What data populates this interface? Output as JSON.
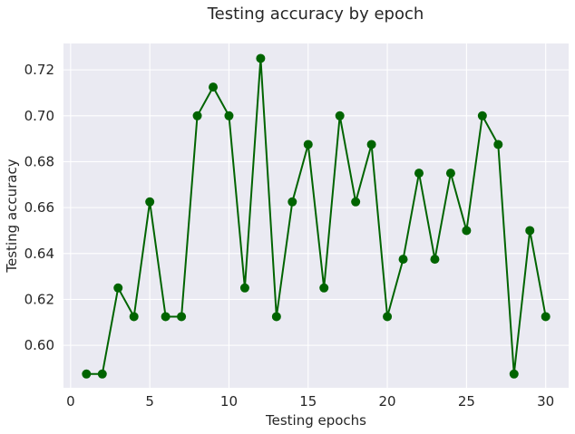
{
  "chart_data": {
    "type": "line",
    "title": "Testing accuracy by epoch",
    "xlabel": "Testing epochs",
    "ylabel": "Testing accuracy",
    "xlim": [
      -0.45,
      31.45
    ],
    "ylim": [
      0.5815,
      0.7315
    ],
    "xticks": [
      0,
      5,
      10,
      15,
      20,
      25,
      30
    ],
    "xtick_labels": [
      "0",
      "5",
      "10",
      "15",
      "20",
      "25",
      "30"
    ],
    "yticks": [
      0.6,
      0.62,
      0.64,
      0.66,
      0.68,
      0.7,
      0.72
    ],
    "ytick_labels": [
      "0.60",
      "0.62",
      "0.64",
      "0.66",
      "0.68",
      "0.70",
      "0.72"
    ],
    "grid": true,
    "series": [
      {
        "color": "#006400",
        "marker": "circle",
        "x": [
          1,
          2,
          3,
          4,
          5,
          6,
          7,
          8,
          9,
          10,
          11,
          12,
          13,
          14,
          15,
          16,
          17,
          18,
          19,
          20,
          21,
          22,
          23,
          24,
          25,
          26,
          27,
          28,
          29,
          30
        ],
        "y": [
          0.5875,
          0.5875,
          0.625,
          0.6125,
          0.6625,
          0.6125,
          0.6125,
          0.7,
          0.7125,
          0.7,
          0.625,
          0.725,
          0.6125,
          0.6625,
          0.6875,
          0.625,
          0.7,
          0.6625,
          0.6875,
          0.6125,
          0.6375,
          0.675,
          0.6375,
          0.675,
          0.65,
          0.7,
          0.6875,
          0.5875,
          0.65,
          0.6125
        ]
      }
    ]
  },
  "colors": {
    "plot_background": "#EAEAF2",
    "grid": "#FFFFFF",
    "line": "#006400"
  }
}
